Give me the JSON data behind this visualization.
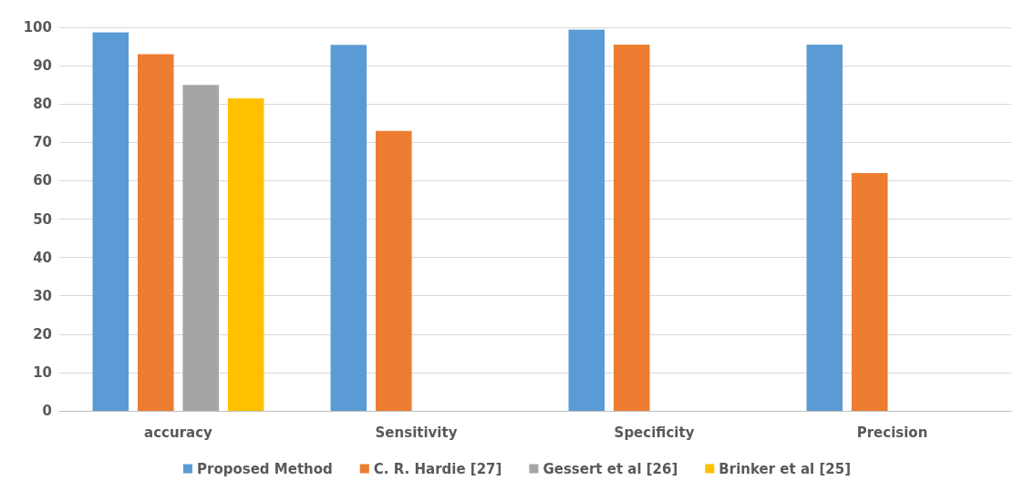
{
  "chart_data": {
    "type": "bar",
    "categories": [
      "accuracy",
      "Sensitivity",
      "Specificity",
      "Precision"
    ],
    "series": [
      {
        "name": "Proposed Method",
        "color": "#5b9bd5",
        "values": [
          98.7,
          95.4,
          99.4,
          95.5
        ]
      },
      {
        "name": "C. R. Hardie [27]",
        "color": "#ed7d31",
        "values": [
          93,
          73,
          95.5,
          62
        ]
      },
      {
        "name": "Gessert et al [26]",
        "color": "#a5a5a5",
        "values": [
          85,
          null,
          null,
          null
        ]
      },
      {
        "name": "Brinker et al [25]",
        "color": "#ffc000",
        "values": [
          81.5,
          null,
          null,
          null
        ]
      }
    ],
    "ylim": [
      0,
      100
    ],
    "yticks": [
      0,
      10,
      20,
      30,
      40,
      50,
      60,
      70,
      80,
      90,
      100
    ],
    "grid": "y",
    "legend": "bottom"
  }
}
